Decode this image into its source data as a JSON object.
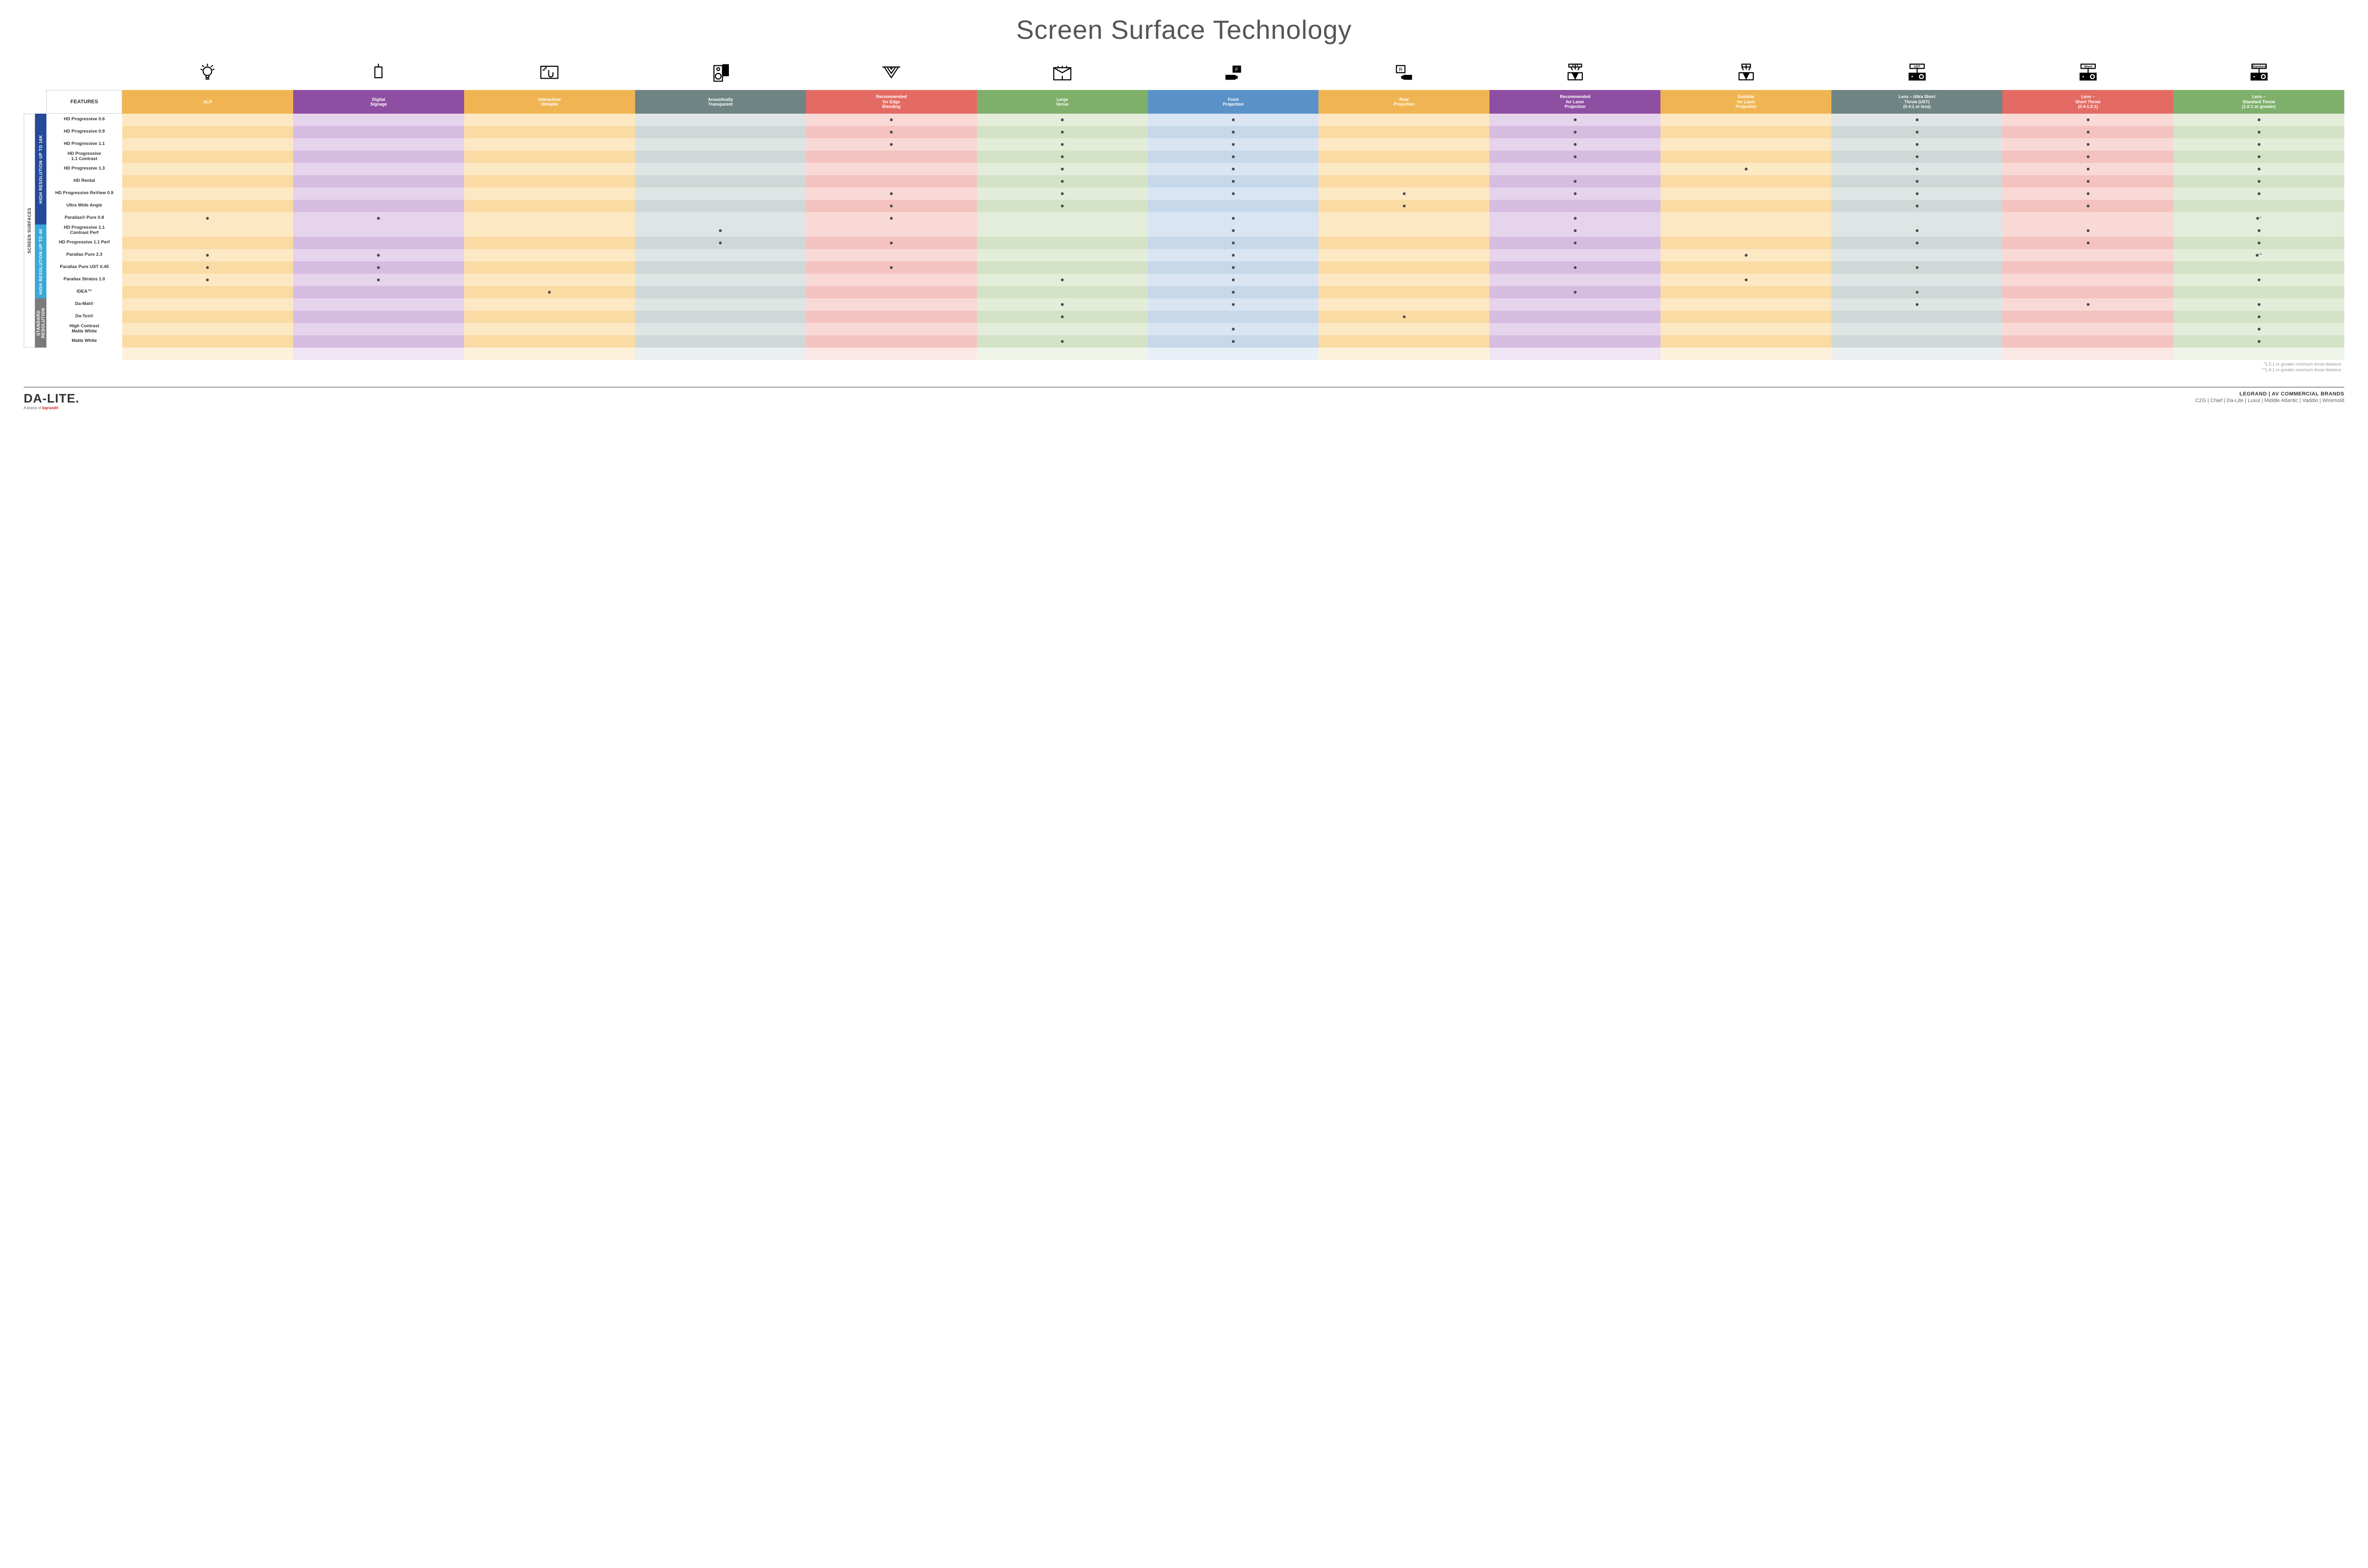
{
  "title": "Screen Surface Technology",
  "features_header": "FEATURES",
  "columns": [
    {
      "key": "alr",
      "label": "ALR",
      "color": "#f0b552",
      "tint_even": "#fde8c4",
      "tint_odd": "#fbdba4",
      "icon": "bulb"
    },
    {
      "key": "signage",
      "label": "Digital\nSignage",
      "color": "#8e4fa3",
      "tint_even": "#e6d3ec",
      "tint_odd": "#d7bce1",
      "icon": "signage"
    },
    {
      "key": "interactive",
      "label": "Interactive/\nWritable",
      "color": "#f0b552",
      "tint_even": "#fde8c4",
      "tint_odd": "#fbdba4",
      "icon": "touch"
    },
    {
      "key": "acoustic",
      "label": "Acoustically\nTransparent",
      "color": "#6f8583",
      "tint_even": "#dfe5e4",
      "tint_odd": "#cfd8d6",
      "icon": "speaker"
    },
    {
      "key": "edge",
      "label": "Recommended\nfor Edge\nBlending",
      "color": "#e46b63",
      "tint_even": "#f9d9d6",
      "tint_odd": "#f4c3bf",
      "icon": "blend"
    },
    {
      "key": "large",
      "label": "Large\nVenue",
      "color": "#7fb06b",
      "tint_even": "#e3edd9",
      "tint_odd": "#d4e3c6",
      "icon": "venue"
    },
    {
      "key": "front",
      "label": "Front\nProjection",
      "color": "#5a92c8",
      "tint_even": "#d9e5f2",
      "tint_odd": "#c6d8ea",
      "icon": "front"
    },
    {
      "key": "rear",
      "label": "Rear\nProjection",
      "color": "#f0b552",
      "tint_even": "#fde8c4",
      "tint_odd": "#fbdba4",
      "icon": "rear"
    },
    {
      "key": "reclaser",
      "label": "Recommended\nfor Laser\nProjection",
      "color": "#8e4fa3",
      "tint_even": "#e6d3ec",
      "tint_odd": "#d7bce1",
      "icon": "laser3"
    },
    {
      "key": "suitlaser",
      "label": "Suitable\nfor Laser\nProjection",
      "color": "#f0b552",
      "tint_even": "#fde8c4",
      "tint_odd": "#fbdba4",
      "icon": "laser1"
    },
    {
      "key": "ust",
      "label": "Lens – Ultra Short\nThrow (UST)\n(0.4:1 or less)",
      "color": "#6f8583",
      "tint_even": "#dfe5e4",
      "tint_odd": "#cfd8d6",
      "icon": "proj",
      "icon_label": "UST"
    },
    {
      "key": "short",
      "label": "Lens –\nShort Throw\n(0.4-1.0:1)",
      "color": "#e46b63",
      "tint_even": "#f9d9d6",
      "tint_odd": "#f4c3bf",
      "icon": "proj",
      "icon_label": "Short"
    },
    {
      "key": "std",
      "label": "Lens –\nStandard Throw\n(1.0:1 or greater)",
      "color": "#7fb06b",
      "tint_even": "#e3edd9",
      "tint_odd": "#d4e3c6",
      "icon": "proj",
      "icon_label": "Standard"
    }
  ],
  "groups": [
    {
      "key": "g16k",
      "label": "HIGH RESOLUTION UP TO 16K",
      "color": "#244a9a",
      "rows": 9
    },
    {
      "key": "g4k",
      "label": "HIGH RESOLUTION UP TO 4K",
      "color": "#3aa8d8",
      "rows": 6
    },
    {
      "key": "gstd",
      "label": "STANDARD\nRESOLUTION",
      "color": "#7a7a7a",
      "rows": 4
    }
  ],
  "outer_label": "SCREEN SURFACES",
  "rows": [
    {
      "label": "HD Progressive 0.6",
      "group": "g16k",
      "dots": {
        "edge": "",
        "large": "",
        "front": "",
        "reclaser": "",
        "ust": "",
        "short": "",
        "std": ""
      }
    },
    {
      "label": "HD Progressive 0.9",
      "group": "g16k",
      "dots": {
        "edge": "",
        "large": "",
        "front": "",
        "reclaser": "",
        "ust": "",
        "short": "",
        "std": ""
      }
    },
    {
      "label": "HD Progressive 1.1",
      "group": "g16k",
      "dots": {
        "edge": "",
        "large": "",
        "front": "",
        "reclaser": "",
        "ust": "",
        "short": "",
        "std": ""
      }
    },
    {
      "label": "HD Progressive\n1.1 Contrast",
      "group": "g16k",
      "dots": {
        "large": "",
        "front": "",
        "reclaser": "",
        "ust": "",
        "short": "",
        "std": ""
      }
    },
    {
      "label": "HD Progressive 1.3",
      "group": "g16k",
      "dots": {
        "large": "",
        "front": "",
        "suitlaser": "",
        "ust": "",
        "short": "",
        "std": ""
      }
    },
    {
      "label": "HD Rental",
      "group": "g16k",
      "dots": {
        "large": "",
        "front": "",
        "reclaser": "",
        "ust": "",
        "short": "",
        "std": ""
      }
    },
    {
      "label": "HD Progressive ReView 0.9",
      "group": "g16k",
      "dots": {
        "edge": "",
        "large": "",
        "front": "",
        "rear": "",
        "reclaser": "",
        "ust": "",
        "short": "",
        "std": ""
      }
    },
    {
      "label": "Ultra Wide Angle",
      "group": "g16k",
      "dots": {
        "edge": "",
        "large": "",
        "rear": "",
        "ust": "",
        "short": ""
      }
    },
    {
      "label": "Parallax® Pure 0.8",
      "group": "g16k",
      "dots": {
        "alr": "",
        "signage": "",
        "edge": "",
        "front": "",
        "reclaser": "",
        "std": "*"
      }
    },
    {
      "label": "HD Progressive 1.1\nContrast Perf",
      "group": "g4k",
      "dots": {
        "acoustic": "",
        "front": "",
        "reclaser": "",
        "ust": "",
        "short": "",
        "std": ""
      }
    },
    {
      "label": "HD Progressive 1.1 Perf",
      "group": "g4k",
      "dots": {
        "acoustic": "",
        "edge": "",
        "front": "",
        "reclaser": "",
        "ust": "",
        "short": "",
        "std": ""
      }
    },
    {
      "label": "Parallax Pure 2.3",
      "group": "g4k",
      "dots": {
        "alr": "",
        "signage": "",
        "front": "",
        "suitlaser": "",
        "std": "**"
      }
    },
    {
      "label": "Parallax Pure UST 0.45",
      "group": "g4k",
      "dots": {
        "alr": "",
        "signage": "",
        "edge": "",
        "front": "",
        "reclaser": "",
        "ust": ""
      }
    },
    {
      "label": "Parallax Stratos 1.0",
      "group": "g4k",
      "dots": {
        "alr": "",
        "signage": "",
        "large": "",
        "front": "",
        "suitlaser": "",
        "std": ""
      }
    },
    {
      "label": "IDEA™",
      "group": "g4k",
      "dots": {
        "interactive": "",
        "front": "",
        "reclaser": "",
        "ust": ""
      }
    },
    {
      "label": "Da-Mat®",
      "group": "gstd",
      "dots": {
        "large": "",
        "front": "",
        "ust": "",
        "short": "",
        "std": ""
      }
    },
    {
      "label": "Da-Tex®",
      "group": "gstd",
      "dots": {
        "large": "",
        "rear": "",
        "std": ""
      }
    },
    {
      "label": "High Contrast\nMatte White",
      "group": "gstd",
      "dots": {
        "front": "",
        "std": ""
      }
    },
    {
      "label": "Matte White",
      "group": "gstd",
      "dots": {
        "large": "",
        "front": "",
        "std": ""
      }
    }
  ],
  "footnotes": [
    "*1.5:1 or greater minimum throw distance",
    "**1.8:1 or greater minimum throw distance"
  ],
  "footer": {
    "logo": "DA-LITE.",
    "logo_sub_pre": "A brand of ",
    "logo_sub_brand": "legrand®",
    "brands_title": "LEGRAND | AV COMMERCIAL BRANDS",
    "brands_list": "C2G  |  Chief  |  Da-Lite  |  Luxul  |  Middle Atlantic  |  Vaddio  |  Wiremold"
  }
}
